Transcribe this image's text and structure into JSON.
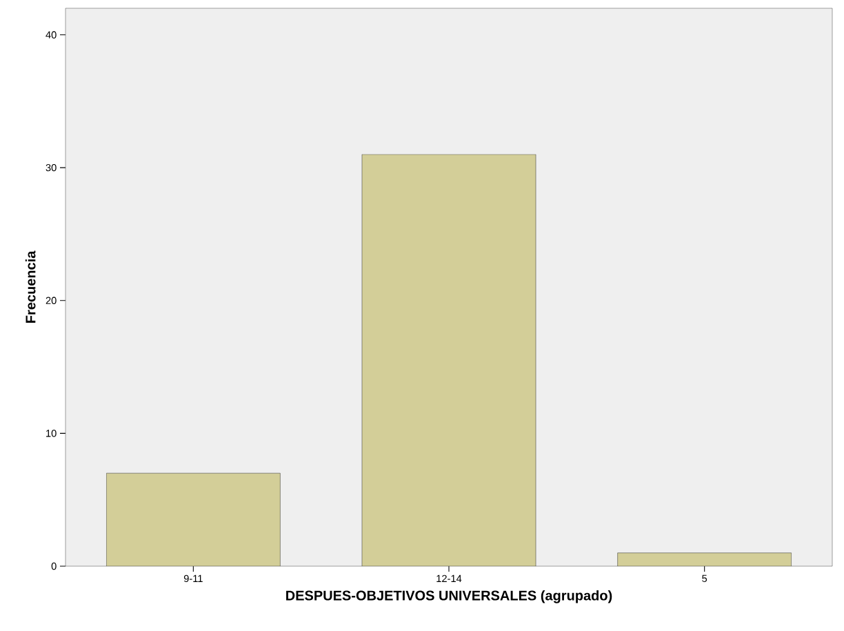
{
  "chart_data": {
    "type": "bar",
    "xlabel": "DESPUES-OBJETIVOS UNIVERSALES (agrupado)",
    "ylabel": "Frecuencia",
    "categories": [
      "9-11",
      "12-14",
      "5"
    ],
    "values": [
      7,
      31,
      1
    ],
    "color": "#d3ce98",
    "ylim": [
      0,
      42
    ],
    "yticks": [
      0,
      10,
      20,
      30,
      40
    ],
    "grid": false,
    "legend": false
  }
}
